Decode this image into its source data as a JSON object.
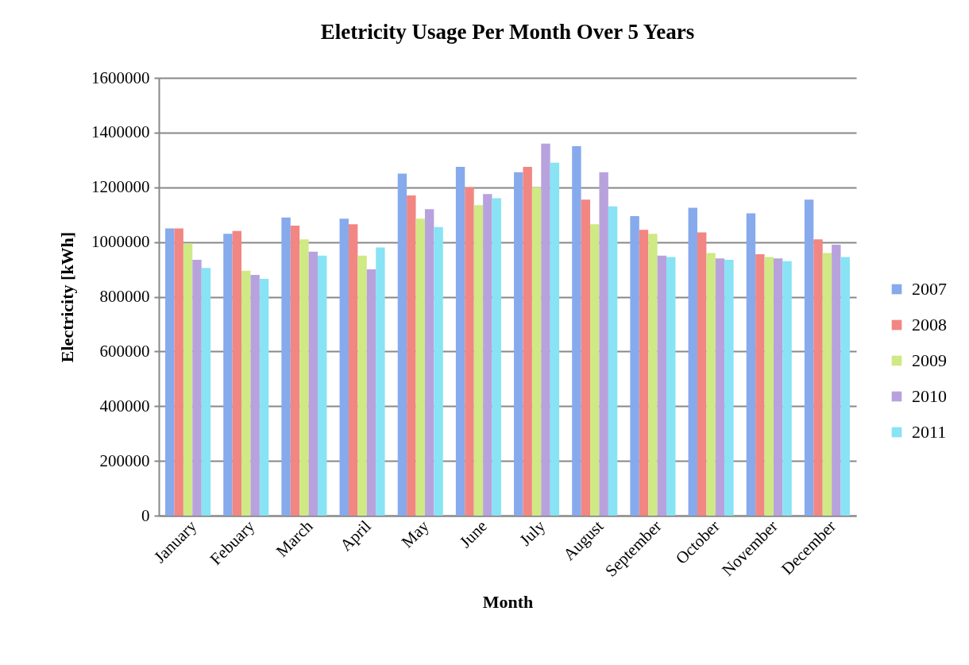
{
  "chart_data": {
    "type": "bar",
    "title": "Eletricity Usage Per Month Over 5 Years",
    "xlabel": "Month",
    "ylabel": "Electricity [kWh]",
    "categories": [
      "January",
      "Febuary",
      "March",
      "April",
      "May",
      "June",
      "July",
      "August",
      "September",
      "October",
      "November",
      "December"
    ],
    "series": [
      {
        "name": "2007",
        "color": "#86aaec",
        "values": [
          1050000,
          1030000,
          1090000,
          1085000,
          1250000,
          1275000,
          1255000,
          1350000,
          1095000,
          1125000,
          1105000,
          1155000
        ]
      },
      {
        "name": "2008",
        "color": "#f28683",
        "values": [
          1050000,
          1040000,
          1060000,
          1065000,
          1170000,
          1200000,
          1275000,
          1155000,
          1045000,
          1035000,
          955000,
          1010000
        ]
      },
      {
        "name": "2009",
        "color": "#cfe984",
        "values": [
          995000,
          895000,
          1010000,
          950000,
          1085000,
          1135000,
          1200000,
          1065000,
          1030000,
          960000,
          945000,
          960000
        ]
      },
      {
        "name": "2010",
        "color": "#b8a2dd",
        "values": [
          935000,
          880000,
          965000,
          900000,
          1120000,
          1175000,
          1360000,
          1255000,
          950000,
          940000,
          940000,
          990000
        ]
      },
      {
        "name": "2011",
        "color": "#88e3f5",
        "values": [
          905000,
          865000,
          950000,
          980000,
          1055000,
          1160000,
          1290000,
          1130000,
          945000,
          935000,
          930000,
          945000
        ]
      }
    ],
    "ylim": [
      0,
      1600000
    ],
    "yticks": [
      0,
      200000,
      400000,
      600000,
      800000,
      1000000,
      1200000,
      1400000,
      1600000
    ],
    "grid": "y",
    "legend": "right"
  }
}
